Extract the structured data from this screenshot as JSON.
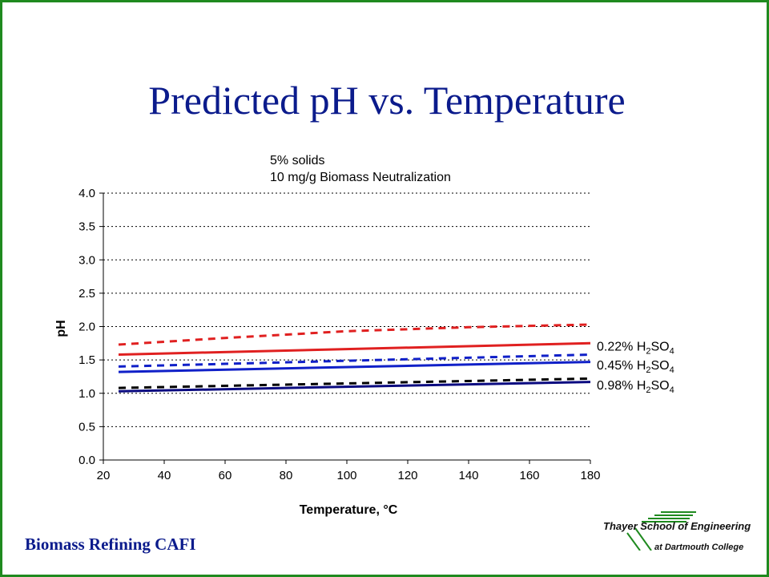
{
  "slide": {
    "title": "Predicted pH vs. Temperature",
    "footer_left": "Biomass Refining CAFI",
    "logo": {
      "line1": "Thayer School of Engineering",
      "line2": "at Dartmouth College",
      "icon": "thayer-logo-icon"
    },
    "border_color": "#1f8a1f",
    "title_color": "#0b1b8c"
  },
  "chart_data": {
    "type": "line",
    "annotation": [
      "5% solids",
      "10 mg/g Biomass Neutralization"
    ],
    "xlabel": "Temperature, °C",
    "ylabel": "pH",
    "xlim": [
      20,
      180
    ],
    "ylim": [
      0,
      4
    ],
    "xticks": [
      20,
      40,
      60,
      80,
      100,
      120,
      140,
      160,
      180
    ],
    "yticks": [
      "0.0",
      "0.5",
      "1.0",
      "1.5",
      "2.0",
      "2.5",
      "3.0",
      "3.5",
      "4.0"
    ],
    "grid": "horizontal dotted",
    "legend": "inline labels at right of lines",
    "labels": [
      {
        "text": "0.22% H2SO4",
        "base": "0.22% H",
        "sub1": "2",
        "mid": "SO",
        "sub2": "4",
        "y": 1.71,
        "color": "#000000"
      },
      {
        "text": "0.45% H2SO4",
        "base": "0.45% H",
        "sub1": "2",
        "mid": "SO",
        "sub2": "4",
        "y": 1.43,
        "color": "#000000"
      },
      {
        "text": "0.98% H2SO4",
        "base": "0.98% H",
        "sub1": "2",
        "mid": "SO",
        "sub2": "4",
        "y": 1.13,
        "color": "#000000"
      }
    ],
    "series": [
      {
        "acid": "0.22% H2SO4",
        "style": "solid",
        "color": "#e02020",
        "x": [
          25,
          180
        ],
        "y": [
          1.58,
          1.75
        ]
      },
      {
        "acid": "0.22% H2SO4",
        "style": "dashed",
        "color": "#e02020",
        "x": [
          25,
          60,
          100,
          140,
          180
        ],
        "y": [
          1.73,
          1.83,
          1.93,
          1.99,
          2.03
        ]
      },
      {
        "acid": "0.45% H2SO4",
        "style": "solid",
        "color": "#1020c8",
        "x": [
          25,
          180
        ],
        "y": [
          1.32,
          1.47
        ]
      },
      {
        "acid": "0.45% H2SO4",
        "style": "dashed",
        "color": "#1020c8",
        "x": [
          25,
          180
        ],
        "y": [
          1.4,
          1.58
        ]
      },
      {
        "acid": "0.98% H2SO4",
        "style": "solid",
        "color": "#0a0a80",
        "x": [
          25,
          180
        ],
        "y": [
          1.03,
          1.17
        ]
      },
      {
        "acid": "0.98% H2SO4",
        "style": "dashed",
        "color": "#000000",
        "x": [
          25,
          180
        ],
        "y": [
          1.08,
          1.22
        ]
      }
    ]
  }
}
